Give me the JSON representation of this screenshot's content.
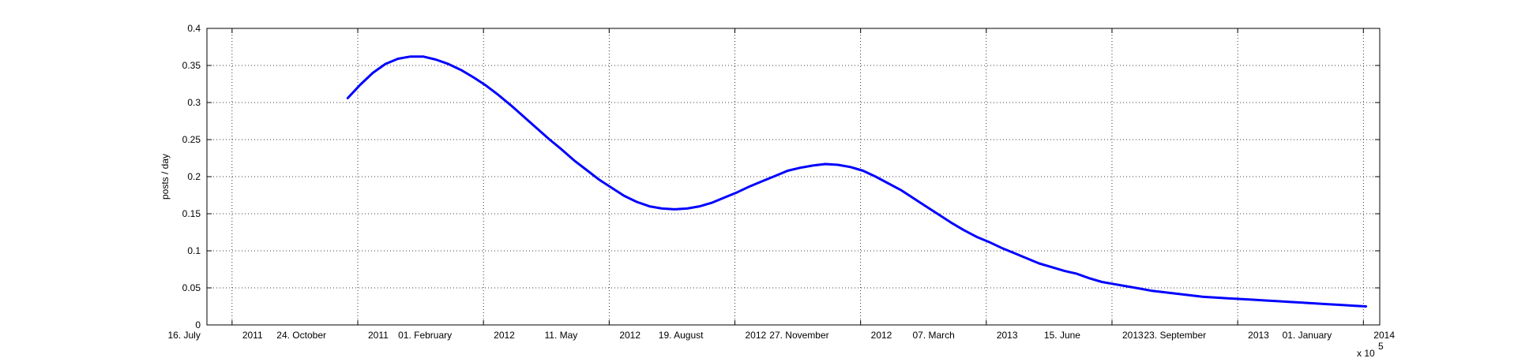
{
  "chart_data": {
    "type": "line",
    "title": "",
    "xlabel": "",
    "ylabel": "posts / day",
    "x_exponent_label": "x 10",
    "x_exponent": "5",
    "grid": true,
    "legend": "none",
    "line_color": "#0000ff",
    "ylim": [
      0,
      0.4
    ],
    "yticks": [
      0,
      0.05,
      0.1,
      0.15,
      0.2,
      0.25,
      0.3,
      0.35,
      0.4
    ],
    "ytick_labels": [
      "0",
      "0.05",
      "0.1",
      "0.15",
      "0.2",
      "0.25",
      "0.3",
      "0.35",
      "0.4"
    ],
    "xlim": [
      "2011-06-26",
      "2014-01-14"
    ],
    "xticks": [
      {
        "date": "2011-07-16",
        "day_month": "16. July",
        "year": "2011"
      },
      {
        "date": "2011-10-24",
        "day_month": "24. October",
        "year": "2011"
      },
      {
        "date": "2012-02-01",
        "day_month": "01. February",
        "year": "2012"
      },
      {
        "date": "2012-05-11",
        "day_month": "11. May",
        "year": "2012"
      },
      {
        "date": "2012-08-19",
        "day_month": "19. August",
        "year": "2012"
      },
      {
        "date": "2012-11-27",
        "day_month": "27. November",
        "year": "2012"
      },
      {
        "date": "2013-03-07",
        "day_month": "07. March",
        "year": "2013"
      },
      {
        "date": "2013-06-15",
        "day_month": "15. June",
        "year": "2013"
      },
      {
        "date": "2013-09-23",
        "day_month": "23. September",
        "year": "2013"
      },
      {
        "date": "2014-01-01",
        "day_month": "01. January",
        "year": "2014"
      }
    ],
    "series": [
      {
        "x": [
          "2011-10-16",
          "2011-10-26",
          "2011-11-05",
          "2011-11-15",
          "2011-11-25",
          "2011-12-05",
          "2011-12-15",
          "2011-12-25",
          "2012-01-04",
          "2012-01-14",
          "2012-01-24",
          "2012-02-03",
          "2012-02-13",
          "2012-02-23",
          "2012-03-04",
          "2012-03-14",
          "2012-03-24",
          "2012-04-03",
          "2012-04-13",
          "2012-04-23",
          "2012-05-03",
          "2012-05-13",
          "2012-05-23",
          "2012-06-02",
          "2012-06-12",
          "2012-06-22",
          "2012-07-02",
          "2012-07-12",
          "2012-07-22",
          "2012-08-01",
          "2012-08-11",
          "2012-08-21",
          "2012-08-31",
          "2012-09-10",
          "2012-09-20",
          "2012-09-30",
          "2012-10-10",
          "2012-10-20",
          "2012-10-30",
          "2012-11-09",
          "2012-11-19",
          "2012-11-29",
          "2012-12-09",
          "2012-12-19",
          "2012-12-29",
          "2013-01-08",
          "2013-01-18",
          "2013-01-28",
          "2013-02-07",
          "2013-02-17",
          "2013-02-27",
          "2013-03-09",
          "2013-03-19",
          "2013-03-29",
          "2013-04-08",
          "2013-04-18",
          "2013-04-28",
          "2013-05-08",
          "2013-05-18",
          "2013-05-28",
          "2013-06-07",
          "2013-06-17",
          "2013-06-27",
          "2013-07-07",
          "2013-07-17",
          "2013-07-27",
          "2013-08-06",
          "2013-08-16",
          "2013-08-26",
          "2013-09-05",
          "2013-09-15",
          "2013-09-25",
          "2013-10-05",
          "2013-10-15",
          "2013-10-25",
          "2013-11-04",
          "2013-11-14",
          "2013-11-24",
          "2013-12-04",
          "2013-12-14",
          "2013-12-24",
          "2014-01-03"
        ],
        "values": [
          0.306,
          0.324,
          0.34,
          0.352,
          0.359,
          0.362,
          0.362,
          0.358,
          0.352,
          0.344,
          0.334,
          0.323,
          0.31,
          0.296,
          0.281,
          0.266,
          0.251,
          0.237,
          0.222,
          0.209,
          0.196,
          0.185,
          0.174,
          0.166,
          0.16,
          0.157,
          0.156,
          0.157,
          0.16,
          0.165,
          0.172,
          0.179,
          0.187,
          0.194,
          0.201,
          0.208,
          0.212,
          0.215,
          0.217,
          0.216,
          0.213,
          0.208,
          0.2,
          0.191,
          0.182,
          0.171,
          0.16,
          0.149,
          0.138,
          0.128,
          0.119,
          0.112,
          0.104,
          0.097,
          0.09,
          0.083,
          0.078,
          0.073,
          0.069,
          0.063,
          0.058,
          0.055,
          0.052,
          0.049,
          0.046,
          0.044,
          0.042,
          0.04,
          0.038,
          0.037,
          0.036,
          0.035,
          0.034,
          0.033,
          0.032,
          0.031,
          0.03,
          0.029,
          0.028,
          0.027,
          0.026,
          0.025
        ]
      }
    ]
  }
}
